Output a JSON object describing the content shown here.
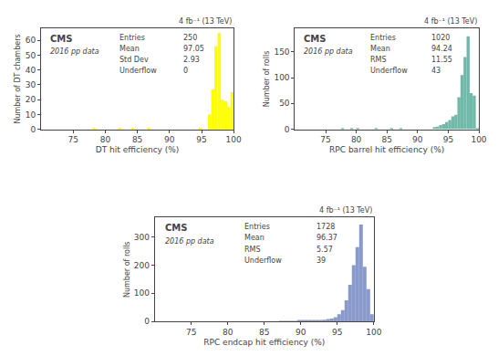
{
  "chart_data": [
    {
      "type": "histogram",
      "x_label": "DT hit efficiency (%)",
      "y_label": "Number of DT chambers",
      "color": "#ffff00",
      "grid": false,
      "annotations": [
        "CMS",
        "2016 pp data",
        "Entries",
        "250",
        "Mean",
        "97.05",
        "Std Dev",
        "2.93",
        "Underflow",
        "0",
        "4 fb⁻¹ (13 TeV)"
      ],
      "bins": [
        70,
        70.5,
        71,
        71.5,
        72,
        72.5,
        73,
        73.5,
        74,
        74.5,
        75,
        75.5,
        76,
        76.5,
        77,
        77.5,
        78,
        78.5,
        79,
        79.5,
        80,
        80.5,
        81,
        81.5,
        82,
        82.5,
        83,
        83.5,
        84,
        84.5,
        85,
        85.5,
        86,
        86.5,
        87,
        87.5,
        88,
        88.5,
        89,
        89.5,
        90,
        90.5,
        91,
        91.5,
        92,
        92.5,
        93,
        93.5,
        94,
        94.5,
        95,
        95.5,
        96,
        96.5,
        97,
        97.5,
        98,
        98.5,
        99,
        99.5,
        100
      ],
      "values": [
        0,
        0,
        0,
        0,
        0,
        0,
        0,
        0,
        0,
        0,
        0,
        0,
        0,
        0,
        0,
        0,
        1,
        0,
        0,
        0,
        0,
        0,
        0,
        0,
        1,
        0,
        0,
        0,
        1,
        0,
        0,
        0,
        0,
        1,
        0,
        0,
        0,
        0,
        0,
        0,
        0,
        0,
        0,
        0,
        0,
        0,
        0,
        0,
        0,
        1,
        0,
        0,
        10,
        27,
        56,
        65,
        20,
        19,
        15,
        25
      ],
      "xlim": [
        70,
        100
      ],
      "xticks": [
        75,
        80,
        85,
        90,
        95,
        100
      ],
      "ylim": [
        0,
        68
      ],
      "yticks": [
        0,
        10,
        20,
        30,
        40,
        50,
        60
      ]
    },
    {
      "type": "histogram",
      "x_label": "RPC barrel hit efficiency (%)",
      "y_label": "Number of rolls",
      "color": "#70b8a8",
      "grid": false,
      "annotations": [
        "CMS",
        "2016 pp data",
        "Entries",
        "1020",
        "Mean",
        "94.24",
        "RMS",
        "11.55",
        "Underflow",
        "43",
        "4 fb⁻¹ (13 TeV)"
      ],
      "bins": [
        70,
        70.5,
        71,
        71.5,
        72,
        72.5,
        73,
        73.5,
        74,
        74.5,
        75,
        75.5,
        76,
        76.5,
        77,
        77.5,
        78,
        78.5,
        79,
        79.5,
        80,
        80.5,
        81,
        81.5,
        82,
        82.5,
        83,
        83.5,
        84,
        84.5,
        85,
        85.5,
        86,
        86.5,
        87,
        87.5,
        88,
        88.5,
        89,
        89.5,
        90,
        90.5,
        91,
        91.5,
        92,
        92.5,
        93,
        93.5,
        94,
        94.5,
        95,
        95.5,
        96,
        96.5,
        97,
        97.5,
        98,
        98.5,
        99,
        99.5,
        100
      ],
      "values": [
        0,
        0,
        0,
        0,
        0,
        0,
        0,
        0,
        0,
        0,
        0,
        0,
        0,
        0,
        0,
        1,
        0,
        0,
        1,
        0,
        1,
        0,
        0,
        0,
        0,
        0,
        1,
        0,
        0,
        0,
        0,
        1,
        0,
        0,
        1,
        0,
        0,
        0,
        0,
        0,
        0,
        0,
        0,
        0,
        0,
        4,
        5,
        8,
        10,
        14,
        18,
        25,
        28,
        62,
        105,
        140,
        180,
        70,
        65,
        1
      ],
      "xlim": [
        70,
        100
      ],
      "xticks": [
        75,
        80,
        85,
        90,
        95,
        100
      ],
      "ylim": [
        0,
        195
      ],
      "yticks": [
        0,
        50,
        100,
        150
      ]
    },
    {
      "type": "histogram",
      "x_label": "RPC endcap hit efficiency (%)",
      "y_label": "Number of rolls",
      "color": "#8899cc",
      "grid": false,
      "annotations": [
        "CMS",
        "2016 pp data",
        "Entries",
        "1728",
        "Mean",
        "96.37",
        "RMS",
        "5.57",
        "Underflow",
        "39",
        "4 fb⁻¹ (13 TeV)"
      ],
      "bins": [
        70,
        70.5,
        71,
        71.5,
        72,
        72.5,
        73,
        73.5,
        74,
        74.5,
        75,
        75.5,
        76,
        76.5,
        77,
        77.5,
        78,
        78.5,
        79,
        79.5,
        80,
        80.5,
        81,
        81.5,
        82,
        82.5,
        83,
        83.5,
        84,
        84.5,
        85,
        85.5,
        86,
        86.5,
        87,
        87.5,
        88,
        88.5,
        89,
        89.5,
        90,
        90.5,
        91,
        91.5,
        92,
        92.5,
        93,
        93.5,
        94,
        94.5,
        95,
        95.5,
        96,
        96.5,
        97,
        97.5,
        98,
        98.5,
        99,
        99.5,
        100
      ],
      "values": [
        0,
        0,
        0,
        0,
        0,
        0,
        0,
        0,
        0,
        0,
        0,
        0,
        0,
        0,
        0,
        0,
        0,
        0,
        0,
        0,
        0,
        0,
        0,
        0,
        0,
        0,
        0,
        0,
        0,
        0,
        0,
        0,
        0,
        0,
        1,
        1,
        1,
        1,
        1,
        2,
        2,
        2,
        3,
        3,
        4,
        5,
        6,
        8,
        10,
        15,
        25,
        40,
        75,
        130,
        200,
        265,
        345,
        195,
        115,
        25
      ],
      "xlim": [
        70,
        100
      ],
      "xticks": [
        75,
        80,
        85,
        90,
        95,
        100
      ],
      "ylim": [
        0,
        370
      ],
      "yticks": [
        0,
        100,
        200,
        300
      ]
    }
  ]
}
